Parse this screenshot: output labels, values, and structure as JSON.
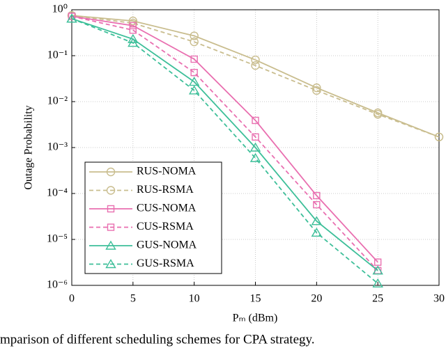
{
  "chart_data": {
    "type": "line",
    "ylabel": "Outage Probability",
    "xlabel": "Pₘ (dBm)",
    "caption": "mparison of different scheduling schemes for CPA strategy.",
    "x": [
      0,
      5,
      10,
      15,
      20,
      25,
      30
    ],
    "xlim": [
      0,
      30
    ],
    "xticks": [
      0,
      5,
      10,
      15,
      20,
      25,
      30
    ],
    "ylim": [
      1e-06,
      1
    ],
    "yticks": [
      {
        "value": 1,
        "label": "10⁰"
      },
      {
        "value": 0.1,
        "label": "10⁻¹"
      },
      {
        "value": 0.01,
        "label": "10⁻²"
      },
      {
        "value": 0.001,
        "label": "10⁻³"
      },
      {
        "value": 0.0001,
        "label": "10⁻⁴"
      },
      {
        "value": 1e-05,
        "label": "10⁻⁵"
      },
      {
        "value": 1e-06,
        "label": "10⁻⁶"
      }
    ],
    "log_y": true,
    "grid": true,
    "legend": "lower left",
    "series": [
      {
        "name": "RUS-NOMA",
        "color": "#c9bd8e",
        "marker": "circle",
        "dash": false,
        "values": [
          0.75,
          0.57,
          0.27,
          0.081,
          0.02,
          0.0057,
          0.0017
        ]
      },
      {
        "name": "RUS-RSMA",
        "color": "#c9bd8e",
        "marker": "circle",
        "dash": true,
        "values": [
          0.75,
          0.51,
          0.2,
          0.061,
          0.0175,
          0.0053,
          0.0017
        ]
      },
      {
        "name": "CUS-NOMA",
        "color": "#e96fb0",
        "marker": "square",
        "dash": false,
        "values": [
          0.72,
          0.45,
          0.084,
          0.0039,
          9e-05,
          3.2e-06,
          null
        ]
      },
      {
        "name": "CUS-RSMA",
        "color": "#e96fb0",
        "marker": "square",
        "dash": true,
        "values": [
          0.72,
          0.36,
          0.043,
          0.0017,
          5.7e-05,
          2.1e-06,
          null
        ]
      },
      {
        "name": "GUS-NOMA",
        "color": "#3dbf99",
        "marker": "triangle",
        "dash": false,
        "values": [
          0.64,
          0.23,
          0.027,
          0.001,
          2.5e-05,
          2.1e-06,
          null
        ]
      },
      {
        "name": "GUS-RSMA",
        "color": "#3dbf99",
        "marker": "triangle",
        "dash": true,
        "values": [
          0.64,
          0.19,
          0.0175,
          0.00059,
          1.4e-05,
          1.1e-06,
          null
        ]
      }
    ]
  }
}
